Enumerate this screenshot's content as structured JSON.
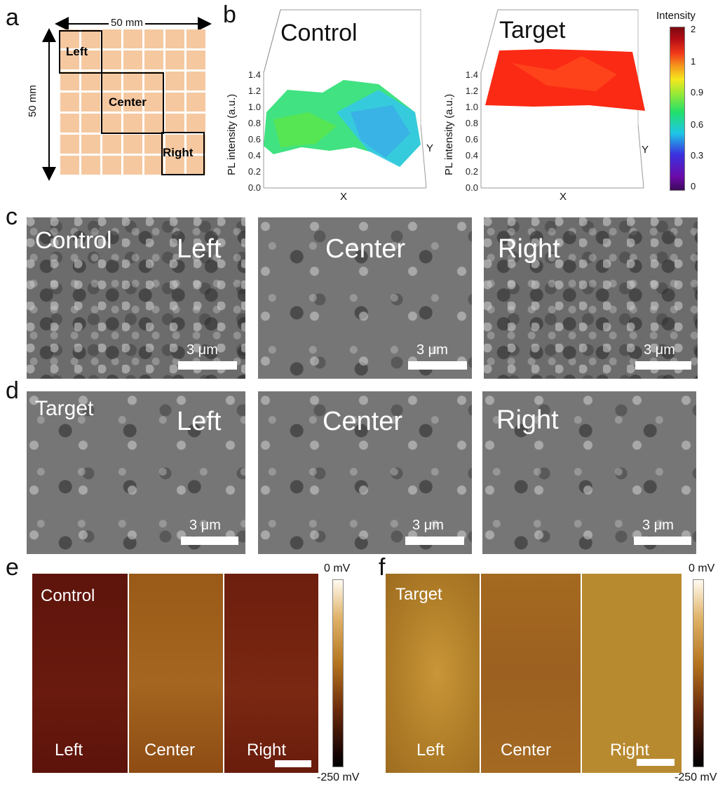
{
  "panel_labels": {
    "a": "a",
    "b": "b",
    "c": "c",
    "d": "d",
    "e": "e",
    "f": "f"
  },
  "panel_a": {
    "width_label": "50 mm",
    "height_label": "50 mm",
    "regions": {
      "left": "Left",
      "center": "Center",
      "right": "Right"
    },
    "colors": {
      "grid_fill": "#f5c8a0"
    }
  },
  "panel_b": {
    "plots": [
      {
        "title": "Control",
        "zlabel": "PL intensity (a.u.)",
        "xlabel": "X",
        "ylabel": "Y",
        "zticks": [
          "0.0",
          "0.2",
          "0.4",
          "0.6",
          "0.8",
          "1.0",
          "1.2",
          "1.4"
        ]
      },
      {
        "title": "Target",
        "zlabel": "PL intensity (a.u.)",
        "xlabel": "X",
        "ylabel": "Y",
        "zticks": [
          "0.0",
          "0.2",
          "0.4",
          "0.6",
          "0.8",
          "1.0",
          "1.2",
          "1.4"
        ]
      }
    ],
    "colorbar": {
      "title": "Intensity",
      "ticks": [
        "2",
        "1",
        "0.9",
        "0.6",
        "0.3",
        "0"
      ]
    }
  },
  "panel_c": {
    "group": "Control",
    "images": [
      {
        "label": "Left",
        "scale": "3 μm"
      },
      {
        "label": "Center",
        "scale": "3 μm"
      },
      {
        "label": "Right",
        "scale": "3 μm"
      }
    ]
  },
  "panel_d": {
    "group": "Target",
    "images": [
      {
        "label": "Left",
        "scale": "3 μm"
      },
      {
        "label": "Center",
        "scale": "3 μm"
      },
      {
        "label": "Right",
        "scale": "3 μm"
      }
    ]
  },
  "panel_e": {
    "group": "Control",
    "labels": [
      "Left",
      "Center",
      "Right"
    ],
    "cbar_top": "0 mV",
    "cbar_bottom": "-250 mV"
  },
  "panel_f": {
    "group": "Target",
    "labels": [
      "Left",
      "Center",
      "Right"
    ],
    "cbar_top": "0 mV",
    "cbar_bottom": "-250 mV"
  }
}
